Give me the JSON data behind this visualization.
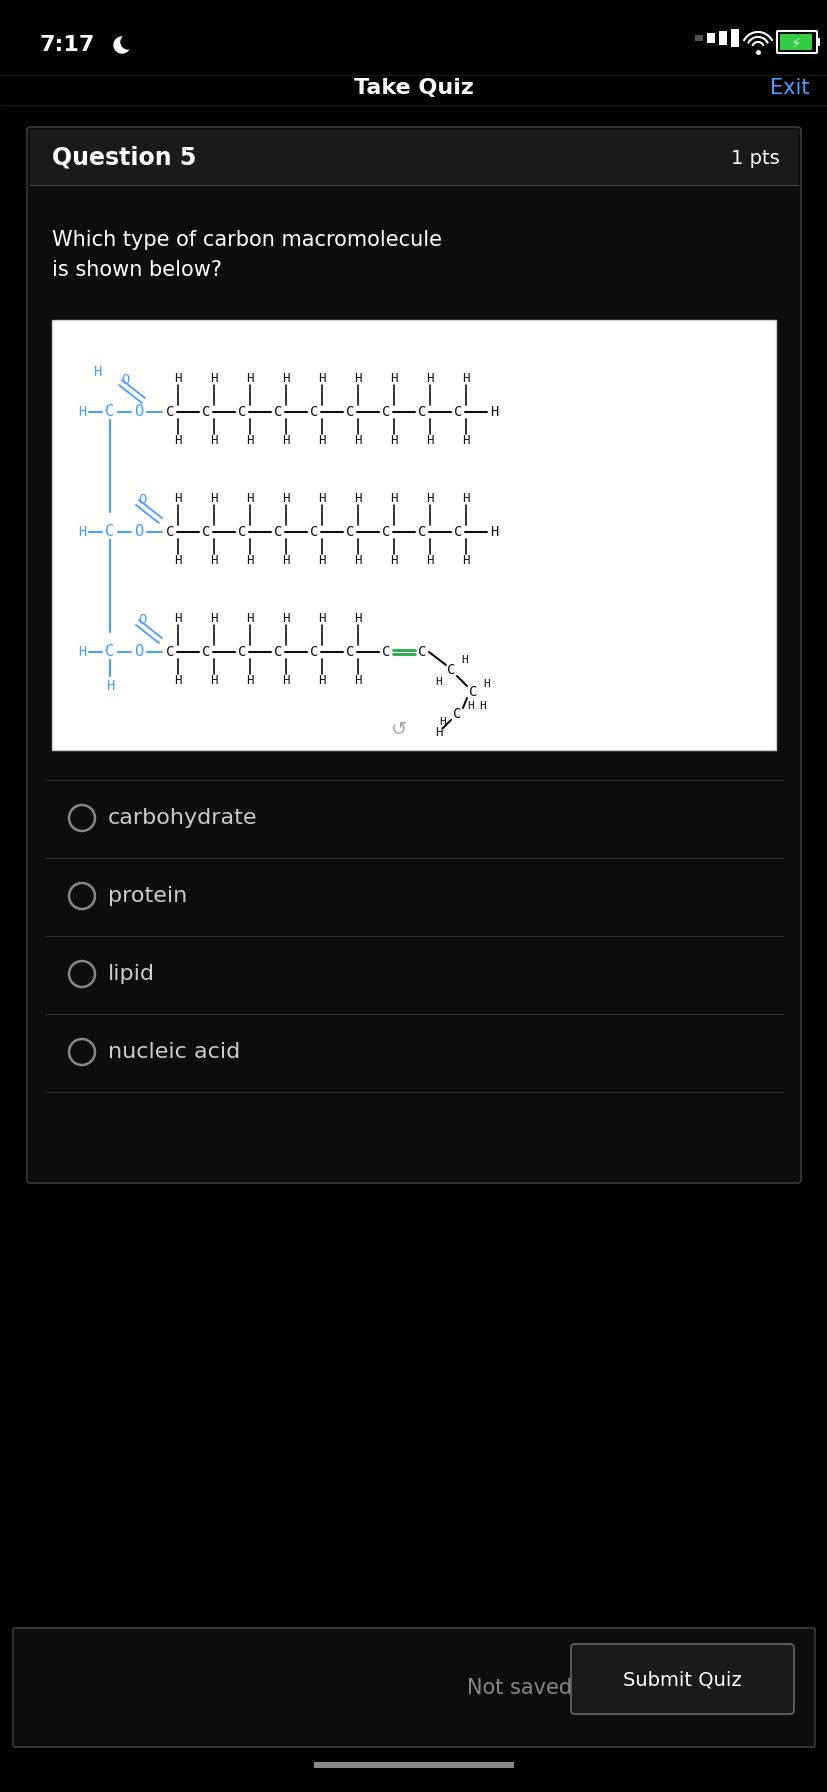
{
  "bg_color": "#000000",
  "card_bg": "#111111",
  "card_border": "#444444",
  "status_bar_time": "7:17",
  "status_bar_color": "#ffffff",
  "title": "Take Quiz",
  "title_color": "#ffffff",
  "exit_text": "Exit",
  "exit_color": "#4a9eff",
  "question_label": "Question 5",
  "question_pts": "1 pts",
  "question_color": "#ffffff",
  "question_text": "Which type of carbon macromolecule\nis shown below?",
  "answer_options": [
    "carbohydrate",
    "protein",
    "lipid",
    "nucleic acid"
  ],
  "answer_color": "#cccccc",
  "not_saved_text": "Not saved",
  "not_saved_color": "#888888",
  "submit_text": "Submit Quiz",
  "submit_color": "#ffffff",
  "submit_border": "#666666",
  "radio_color": "#888888",
  "separator_color": "#333333",
  "molecule_bg": "#ffffff",
  "molecule_border": "#cccccc",
  "blue_color": "#4a9eff",
  "black_color": "#111111",
  "green_color": "#22aa44"
}
